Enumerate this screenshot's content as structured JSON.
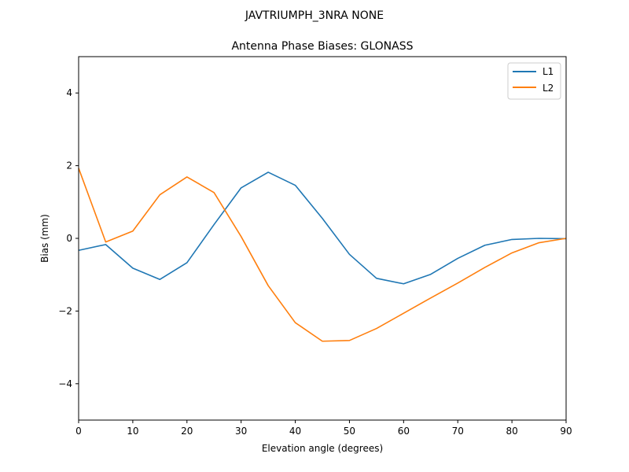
{
  "chart_data": {
    "type": "line",
    "suptitle": "JAVTRIUMPH_3NRA NONE",
    "title": "Antenna Phase Biases: GLONASS",
    "xlabel": "Elevation angle (degrees)",
    "ylabel": "Bias (mm)",
    "xlim": [
      0,
      90
    ],
    "ylim": [
      -5,
      5
    ],
    "xticks": [
      0,
      10,
      20,
      30,
      40,
      50,
      60,
      70,
      80,
      90
    ],
    "yticks": [
      -4,
      -2,
      0,
      2,
      4
    ],
    "xtick_labels": [
      "0",
      "10",
      "20",
      "30",
      "40",
      "50",
      "60",
      "70",
      "80",
      "90"
    ],
    "ytick_labels": [
      "−4",
      "−2",
      "0",
      "2",
      "4"
    ],
    "grid": false,
    "legend_position": "top-right",
    "x": [
      0,
      5,
      10,
      15,
      20,
      25,
      30,
      35,
      40,
      45,
      50,
      55,
      60,
      65,
      70,
      75,
      80,
      85,
      90
    ],
    "series": [
      {
        "name": "L1",
        "color": "#1f77b4",
        "values": [
          -0.33,
          -0.17,
          -0.82,
          -1.13,
          -0.67,
          0.38,
          1.39,
          1.82,
          1.46,
          0.55,
          -0.44,
          -1.1,
          -1.25,
          -0.99,
          -0.55,
          -0.19,
          -0.03,
          0.0,
          -0.01
        ]
      },
      {
        "name": "L2",
        "color": "#ff7f0e",
        "values": [
          1.93,
          -0.1,
          0.2,
          1.2,
          1.69,
          1.26,
          0.05,
          -1.3,
          -2.32,
          -2.83,
          -2.81,
          -2.48,
          -2.06,
          -1.64,
          -1.23,
          -0.8,
          -0.4,
          -0.12,
          0.0
        ]
      }
    ]
  }
}
